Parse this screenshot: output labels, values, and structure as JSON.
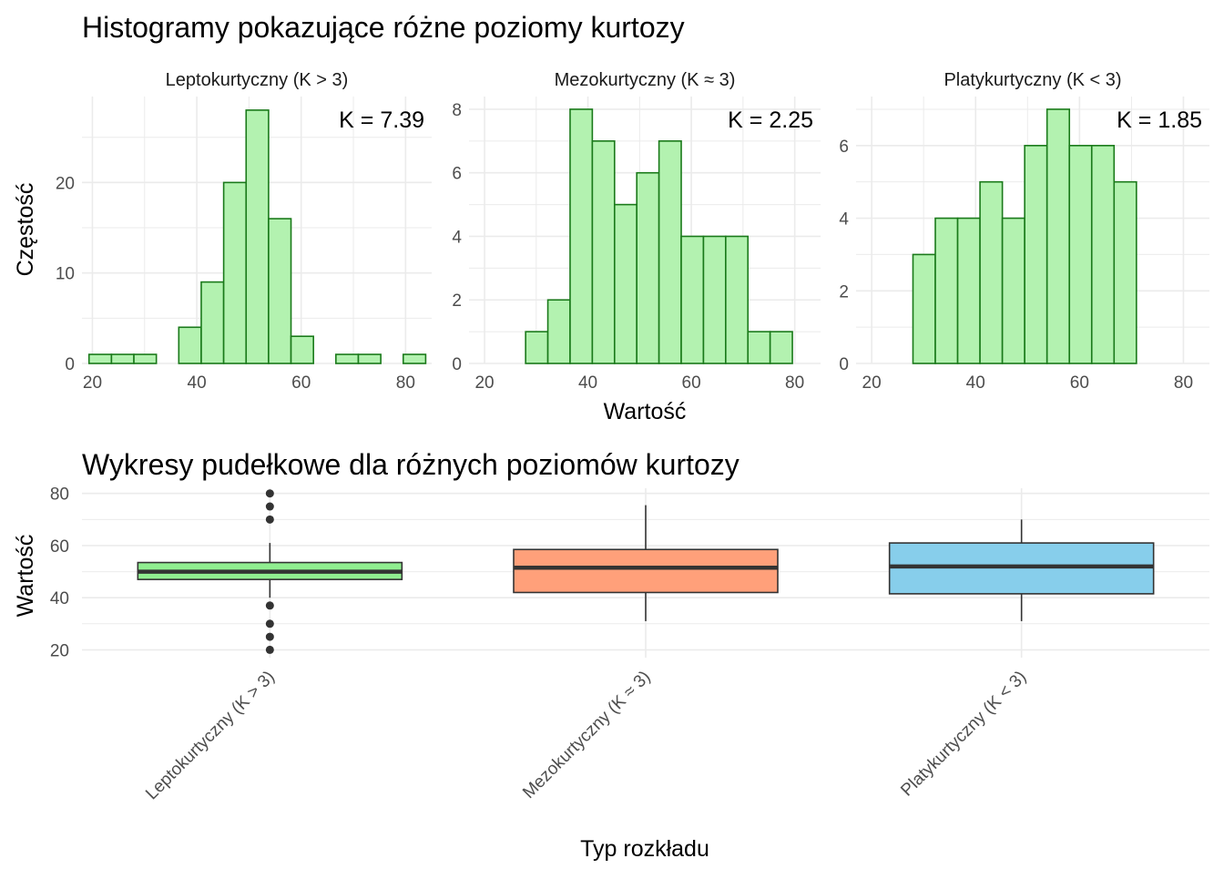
{
  "colors": {
    "hist_fill": "#b3f2b0",
    "hist_stroke": "#1a7a1a",
    "grid": "#ebebeb",
    "tick_text": "#4d4d4d",
    "box_fill": [
      "#90ee90",
      "#ffa07a",
      "#87ceeb"
    ],
    "box_stroke": "#333333"
  },
  "chart_data": [
    {
      "type": "bar",
      "title": "Histogramy pokazujące różne poziomy kurtozy",
      "xlabel": "Wartość",
      "ylabel": "Częstość",
      "bin_width": 4.3,
      "panels": [
        {
          "name": "Leptokurtyczny (K > 3)",
          "annotation": "K = 7.39",
          "xlim": [
            18,
            85
          ],
          "xticks": [
            "20",
            "40",
            "60",
            "80"
          ],
          "ylim": [
            0,
            29.5
          ],
          "yticks": [
            "0",
            "10",
            "20"
          ],
          "bin_centers": [
            21.5,
            25.8,
            30.1,
            34.4,
            38.7,
            43.0,
            47.3,
            51.6,
            55.9,
            60.2,
            64.5,
            68.8,
            73.1,
            77.4,
            81.7
          ],
          "values": [
            1,
            1,
            1,
            0,
            4,
            9,
            20,
            28,
            16,
            3,
            0,
            1,
            1,
            0,
            1
          ]
        },
        {
          "name": "Mezokurtyczny (K ≈ 3)",
          "annotation": "K = 2.25",
          "xlim": [
            17,
            85
          ],
          "xticks": [
            "20",
            "40",
            "60",
            "80"
          ],
          "ylim": [
            0,
            8.4
          ],
          "yticks": [
            "0",
            "2",
            "4",
            "6",
            "8"
          ],
          "bin_centers": [
            21.5,
            25.8,
            30.1,
            34.4,
            38.7,
            43.0,
            47.3,
            51.6,
            55.9,
            60.2,
            64.5,
            68.8,
            73.1,
            77.4,
            81.7
          ],
          "values": [
            0,
            0,
            1,
            2,
            8,
            7,
            5,
            6,
            7,
            4,
            4,
            4,
            1,
            1,
            0
          ]
        },
        {
          "name": "Platykurtyczny (K < 3)",
          "annotation": "K = 1.85",
          "xlim": [
            17,
            85
          ],
          "xticks": [
            "20",
            "40",
            "60",
            "80"
          ],
          "ylim": [
            0,
            7.35
          ],
          "yticks": [
            "0",
            "2",
            "4",
            "6"
          ],
          "bin_centers": [
            21.5,
            25.8,
            30.1,
            34.4,
            38.7,
            43.0,
            47.3,
            51.6,
            55.9,
            60.2,
            64.5,
            68.8,
            73.1,
            77.4,
            81.7
          ],
          "values": [
            0,
            0,
            3,
            4,
            4,
            5,
            4,
            6,
            7,
            6,
            6,
            5,
            0,
            0,
            0
          ]
        }
      ]
    },
    {
      "type": "box",
      "title": "Wykresy pudełkowe dla różnych poziomów kurtozy",
      "xlabel": "Typ rozkładu",
      "ylabel": "Wartość",
      "ylim": [
        17,
        82
      ],
      "yticks": [
        "20",
        "40",
        "60",
        "80"
      ],
      "categories": [
        "Leptokurtyczny (K > 3)",
        "Mezokurtyczny (K ≈ 3)",
        "Platykurtyczny (K < 3)"
      ],
      "boxes": [
        {
          "whisker_low": 40,
          "q1": 47,
          "median": 50,
          "q3": 53.5,
          "whisker_high": 61,
          "outliers": [
            80,
            75,
            70,
            37,
            30,
            25,
            20
          ]
        },
        {
          "whisker_low": 31,
          "q1": 42,
          "median": 51.5,
          "q3": 58.5,
          "whisker_high": 75.5,
          "outliers": []
        },
        {
          "whisker_low": 31,
          "q1": 41.5,
          "median": 52,
          "q3": 61,
          "whisker_high": 70,
          "outliers": []
        }
      ]
    }
  ]
}
